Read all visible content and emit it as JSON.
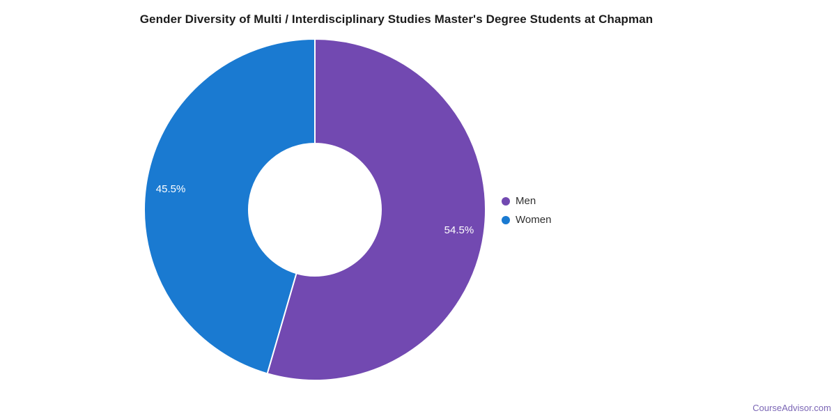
{
  "chart_data": {
    "type": "pie",
    "donut": true,
    "title": "Gender Diversity of Multi / Interdisciplinary Studies Master's Degree Students at Chapman",
    "categories": [
      "Men",
      "Women"
    ],
    "values": [
      54.5,
      45.5
    ],
    "slice_labels": [
      "54.5%",
      "45.5%"
    ],
    "slice_colors": [
      "#7249b1",
      "#1a7ad1"
    ],
    "slice_label_color": "#ffffff",
    "start_angle_deg": 0,
    "direction": "clockwise",
    "legend_position": "right",
    "legend": {
      "items": [
        {
          "label": "Men",
          "color": "#7249b1"
        },
        {
          "label": "Women",
          "color": "#1a7ad1"
        }
      ]
    }
  },
  "credit": {
    "label": "CourseAdvisor.com",
    "color": "#7b66b5"
  }
}
